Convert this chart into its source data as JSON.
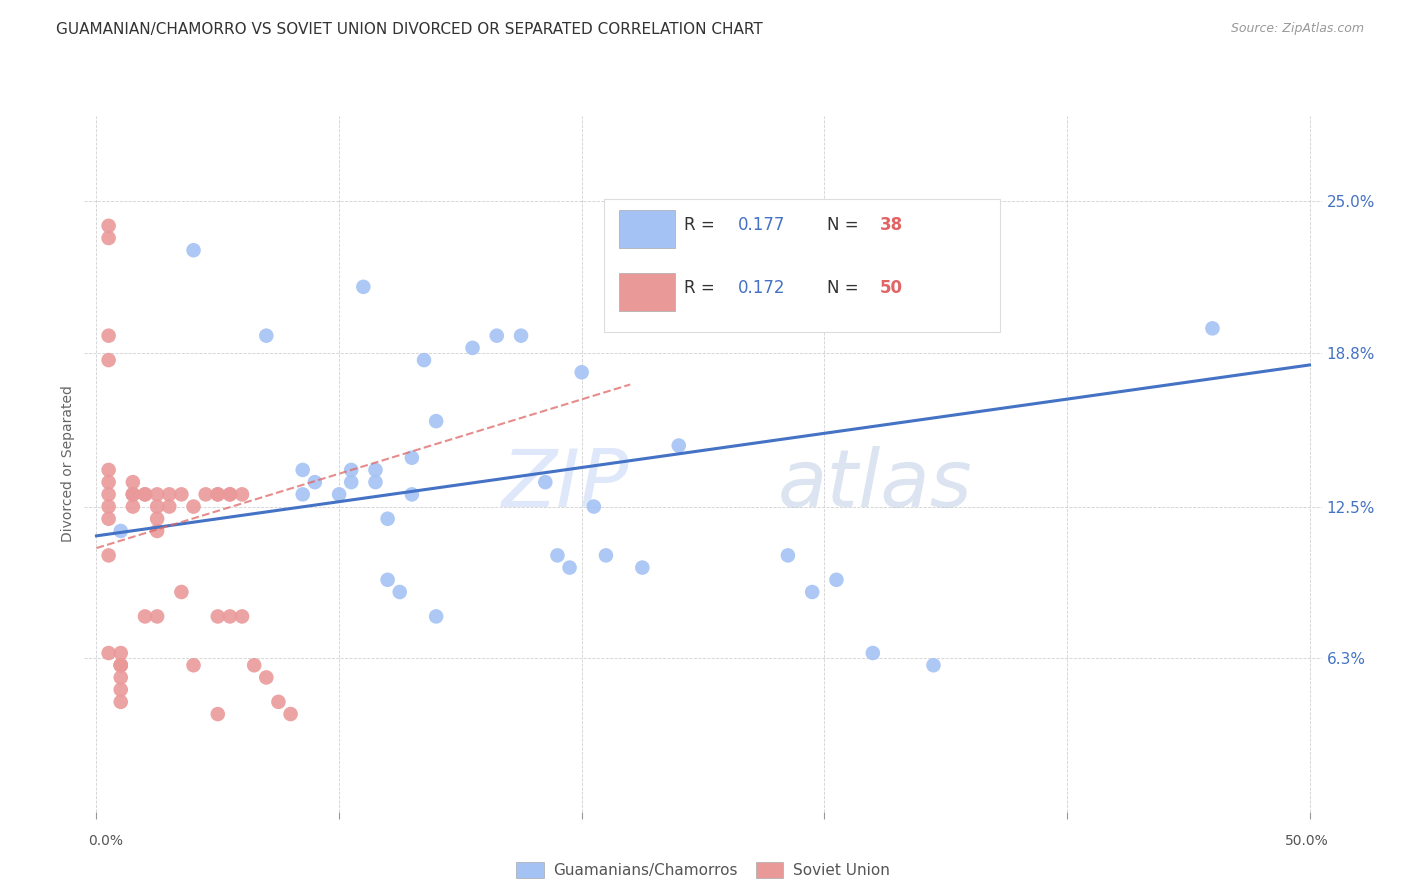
{
  "title": "GUAMANIAN/CHAMORRO VS SOVIET UNION DIVORCED OR SEPARATED CORRELATION CHART",
  "source": "Source: ZipAtlas.com",
  "ylabel": "Divorced or Separated",
  "ytick_labels": [
    "25.0%",
    "18.8%",
    "12.5%",
    "6.3%"
  ],
  "ytick_values": [
    0.25,
    0.188,
    0.125,
    0.063
  ],
  "xlim": [
    -0.005,
    0.505
  ],
  "ylim": [
    0.0,
    0.285
  ],
  "legend_label1": "Guamanians/Chamorros",
  "legend_label2": "Soviet Union",
  "color_blue": "#a4c2f4",
  "color_pink": "#ea9999",
  "color_blue_dark": "#4472c4",
  "color_pink_dark": "#e06666",
  "watermark_zip": "ZIP",
  "watermark_atlas": "atlas",
  "blue_scatter_x": [
    0.015,
    0.04,
    0.07,
    0.085,
    0.085,
    0.09,
    0.1,
    0.105,
    0.105,
    0.11,
    0.115,
    0.115,
    0.12,
    0.12,
    0.125,
    0.13,
    0.13,
    0.135,
    0.14,
    0.14,
    0.155,
    0.165,
    0.175,
    0.185,
    0.19,
    0.195,
    0.2,
    0.205,
    0.21,
    0.225,
    0.24,
    0.285,
    0.295,
    0.305,
    0.32,
    0.345,
    0.46,
    0.01
  ],
  "blue_scatter_y": [
    0.13,
    0.23,
    0.195,
    0.13,
    0.14,
    0.135,
    0.13,
    0.135,
    0.14,
    0.215,
    0.14,
    0.135,
    0.12,
    0.095,
    0.09,
    0.13,
    0.145,
    0.185,
    0.16,
    0.08,
    0.19,
    0.195,
    0.195,
    0.135,
    0.105,
    0.1,
    0.18,
    0.125,
    0.105,
    0.1,
    0.15,
    0.105,
    0.09,
    0.095,
    0.065,
    0.06,
    0.198,
    0.115
  ],
  "pink_scatter_x": [
    0.005,
    0.005,
    0.005,
    0.005,
    0.005,
    0.005,
    0.005,
    0.005,
    0.005,
    0.005,
    0.005,
    0.01,
    0.01,
    0.01,
    0.01,
    0.01,
    0.01,
    0.01,
    0.015,
    0.015,
    0.015,
    0.015,
    0.02,
    0.02,
    0.02,
    0.025,
    0.025,
    0.025,
    0.025,
    0.025,
    0.03,
    0.03,
    0.035,
    0.035,
    0.04,
    0.04,
    0.045,
    0.05,
    0.05,
    0.05,
    0.05,
    0.055,
    0.055,
    0.055,
    0.06,
    0.06,
    0.065,
    0.07,
    0.075,
    0.08
  ],
  "pink_scatter_y": [
    0.24,
    0.235,
    0.195,
    0.185,
    0.14,
    0.135,
    0.13,
    0.125,
    0.12,
    0.105,
    0.065,
    0.065,
    0.06,
    0.06,
    0.06,
    0.055,
    0.05,
    0.045,
    0.135,
    0.13,
    0.13,
    0.125,
    0.13,
    0.13,
    0.08,
    0.13,
    0.125,
    0.12,
    0.115,
    0.08,
    0.13,
    0.125,
    0.13,
    0.09,
    0.125,
    0.06,
    0.13,
    0.13,
    0.13,
    0.08,
    0.04,
    0.13,
    0.13,
    0.08,
    0.13,
    0.08,
    0.06,
    0.055,
    0.045,
    0.04
  ],
  "blue_line_x": [
    0.0,
    0.5
  ],
  "blue_line_y": [
    0.113,
    0.183
  ],
  "pink_line_x": [
    0.0,
    0.22
  ],
  "pink_line_y": [
    0.108,
    0.175
  ],
  "background_color": "#ffffff",
  "grid_color": "#cccccc"
}
